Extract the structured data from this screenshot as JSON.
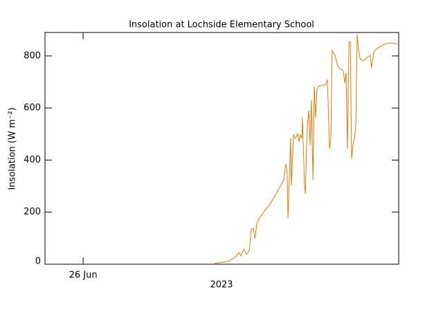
{
  "chart_data": {
    "type": "line",
    "title": "Insolation at Lochside Elementary School",
    "y_label": "Insolation (W m⁻²)",
    "x_label": "2023",
    "xlim": [
      -1.45,
      12
    ],
    "xticks": [
      {
        "value": 0,
        "label": "26 Jun"
      }
    ],
    "ylim": [
      0,
      890
    ],
    "yticks": [
      0,
      200,
      400,
      600,
      800
    ],
    "grid": false,
    "series": [
      {
        "color": "#e87800",
        "x": [
          5.0,
          5.53,
          5.79,
          5.92,
          6.0,
          6.11,
          6.21,
          6.32,
          6.39,
          6.47,
          6.53,
          6.61,
          6.71,
          6.84,
          7.11,
          7.37,
          7.63,
          7.71,
          7.76,
          7.79,
          7.84,
          7.89,
          7.92,
          8.0,
          8.08,
          8.16,
          8.21,
          8.26,
          8.32,
          8.34,
          8.42,
          8.45,
          8.5,
          8.53,
          8.58,
          8.63,
          8.68,
          8.74,
          8.79,
          8.84,
          8.89,
          8.95,
          9.08,
          9.21,
          9.29,
          9.37,
          9.42,
          9.47,
          9.58,
          9.68,
          9.79,
          9.89,
          9.95,
          10.0,
          10.05,
          10.11,
          10.16,
          10.21,
          10.26,
          10.32,
          10.37,
          10.42,
          10.47,
          10.53,
          10.66,
          10.79,
          10.92,
          10.97,
          11.05,
          11.18,
          11.32,
          11.45,
          11.58,
          11.71,
          11.84,
          11.97
        ],
        "values": [
          3,
          11,
          27,
          45,
          32,
          58,
          37,
          53,
          133,
          138,
          98,
          159,
          178,
          197,
          231,
          276,
          324,
          385,
          350,
          178,
          324,
          483,
          303,
          497,
          483,
          502,
          470,
          497,
          483,
          563,
          297,
          271,
          457,
          537,
          590,
          457,
          630,
          324,
          683,
          563,
          669,
          683,
          688,
          688,
          709,
          443,
          483,
          821,
          802,
          762,
          749,
          744,
          696,
          736,
          443,
          855,
          855,
          404,
          457,
          483,
          537,
          882,
          829,
          789,
          781,
          794,
          802,
          754,
          815,
          829,
          837,
          845,
          848,
          850,
          848,
          845
        ]
      }
    ]
  }
}
